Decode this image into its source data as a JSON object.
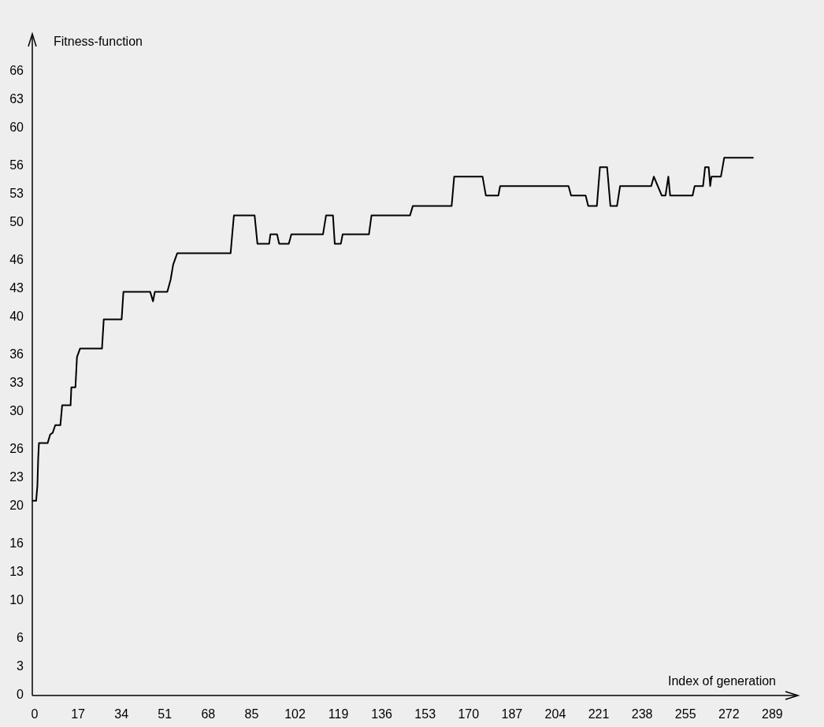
{
  "chart_data": {
    "type": "line",
    "xlabel": "Index of generation",
    "ylabel": "Fitness-function",
    "xlim": [
      0,
      300
    ],
    "ylim": [
      0,
      70
    ],
    "xticks": [
      0,
      17,
      34,
      51,
      68,
      85,
      102,
      119,
      136,
      153,
      170,
      187,
      204,
      221,
      238,
      255,
      272,
      289
    ],
    "yticks": [
      0,
      3,
      6,
      10,
      13,
      16,
      20,
      23,
      26,
      30,
      33,
      36,
      40,
      43,
      46,
      50,
      53,
      56,
      60,
      63,
      66
    ],
    "grid": false,
    "marker": "none",
    "line_style": "solid",
    "series": [
      {
        "color": "#000000",
        "x": [
          0,
          1.5,
          2,
          2.3,
          2.6,
          6,
          7,
          8,
          9,
          11,
          11.7,
          15,
          15.3,
          16.9,
          17.5,
          18.7,
          27.3,
          28,
          35,
          35.7,
          46.2,
          47.3,
          48,
          52.9,
          54.2,
          55.2,
          56.8,
          77.7,
          78.4,
          79,
          87.1,
          88.2,
          92.8,
          93.3,
          95.9,
          96.7,
          100.5,
          101.5,
          113.9,
          115.1,
          117.8,
          118.5,
          120.9,
          121.6,
          131.9,
          132.9,
          148,
          149.1,
          164.3,
          165.3,
          176.4,
          177.7,
          182.6,
          183.3,
          210.1,
          211.1,
          216.8,
          217.8,
          221.2,
          222.4,
          225.2,
          226.5,
          229.1,
          230.3,
          242.5,
          243.5,
          246.6,
          248.1,
          249.2,
          249.9,
          258.7,
          259.5,
          262.8,
          263.6,
          265,
          265.6,
          266.1,
          269.8,
          271.1,
          282.6
        ],
        "values": [
          20.6,
          20.6,
          22.2,
          25,
          26.7,
          26.7,
          27.6,
          27.8,
          28.6,
          28.6,
          30.7,
          30.7,
          32.6,
          32.6,
          35.8,
          36.7,
          36.7,
          39.8,
          39.8,
          42.7,
          42.7,
          41.7,
          42.7,
          42.7,
          44,
          45.6,
          46.8,
          46.8,
          49,
          50.8,
          50.8,
          47.8,
          47.8,
          48.8,
          48.8,
          47.8,
          47.8,
          48.8,
          48.8,
          50.8,
          50.8,
          47.8,
          47.8,
          48.8,
          48.8,
          50.8,
          50.8,
          51.8,
          51.8,
          54.9,
          54.9,
          52.9,
          52.9,
          53.9,
          53.9,
          52.9,
          52.9,
          51.8,
          51.8,
          55.9,
          55.9,
          51.8,
          51.8,
          53.9,
          53.9,
          54.9,
          52.9,
          52.9,
          54.9,
          52.9,
          52.9,
          53.9,
          53.9,
          55.9,
          55.9,
          53.9,
          54.9,
          54.9,
          56.9,
          56.9
        ]
      }
    ]
  }
}
